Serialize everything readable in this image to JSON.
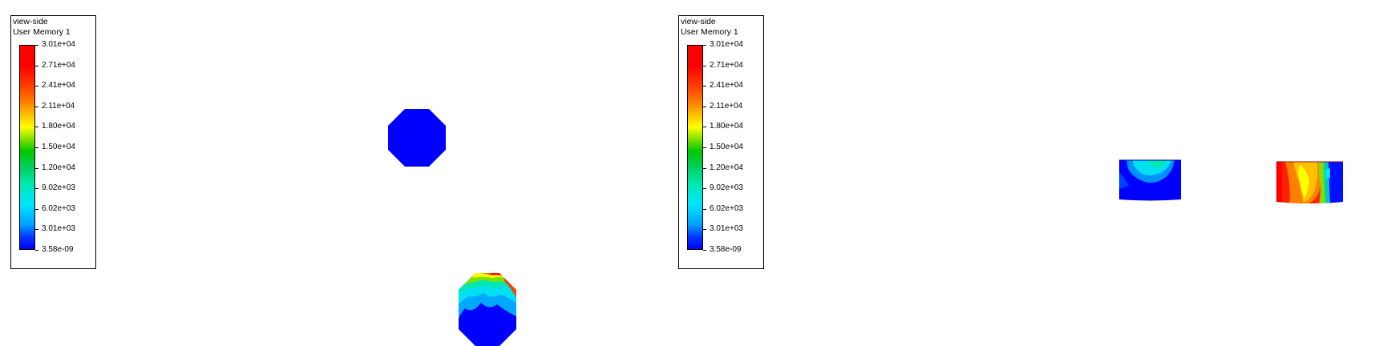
{
  "legend": {
    "title_line1": "view-side",
    "title_line2": "User Memory 1",
    "ticks": [
      "3.01e+04",
      "2.71e+04",
      "2.41e+04",
      "2.11e+04",
      "1.80e+04",
      "1.50e+04",
      "1.20e+04",
      "9.02e+03",
      "6.02e+03",
      "3.01e+03",
      "3.58e-09"
    ]
  },
  "colormap": {
    "low": "#0000ff",
    "mid_low": "#00e5ff",
    "mid": "#00c800",
    "mid_high": "#ffff00",
    "high": "#ff0000"
  }
}
